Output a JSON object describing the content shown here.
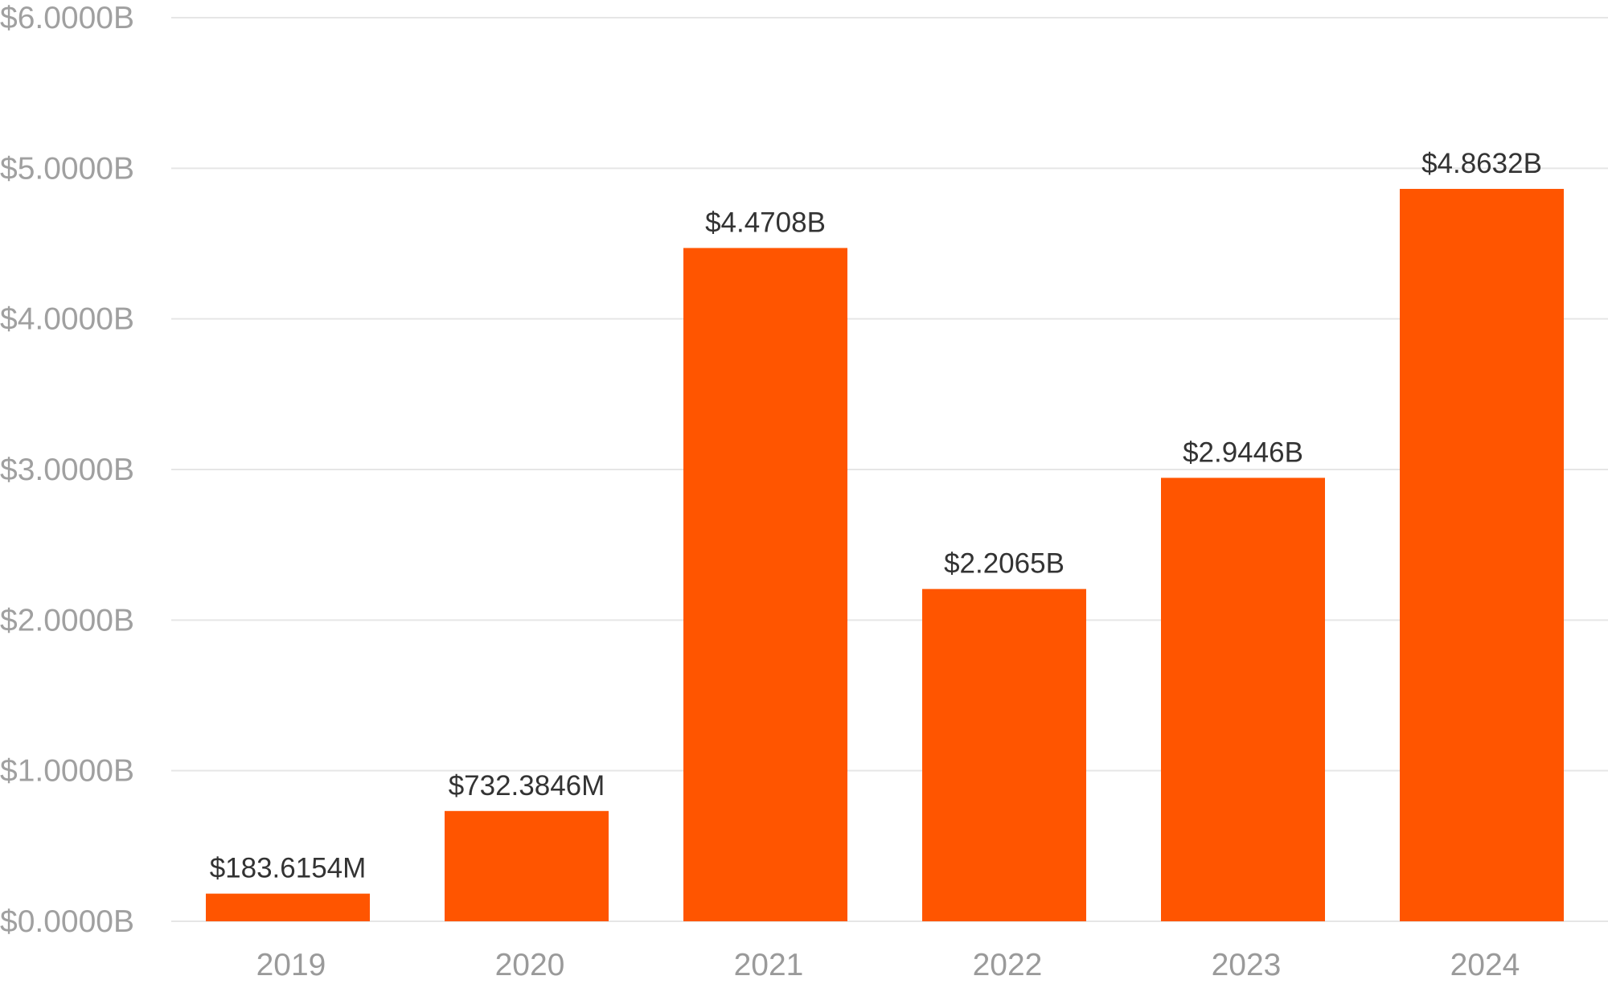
{
  "chart_data": {
    "type": "bar",
    "categories": [
      "2019",
      "2020",
      "2021",
      "2022",
      "2023",
      "2024"
    ],
    "values": [
      0.1836154,
      0.7323846,
      4.4708,
      2.2065,
      2.9446,
      4.8632
    ],
    "data_labels": [
      "$183.6154M",
      "$732.3846M",
      "$4.4708B",
      "$2.2065B",
      "$2.9446B",
      "$4.8632B"
    ],
    "y_ticks": [
      0,
      1,
      2,
      3,
      4,
      5,
      6
    ],
    "y_tick_labels": [
      "$0.0000B",
      "$1.0000B",
      "$2.0000B",
      "$3.0000B",
      "$4.0000B",
      "$5.0000B",
      "$6.0000B"
    ],
    "ylim": [
      0,
      6
    ],
    "grid": true,
    "legend": "none",
    "bar_color": "#ff5500"
  }
}
